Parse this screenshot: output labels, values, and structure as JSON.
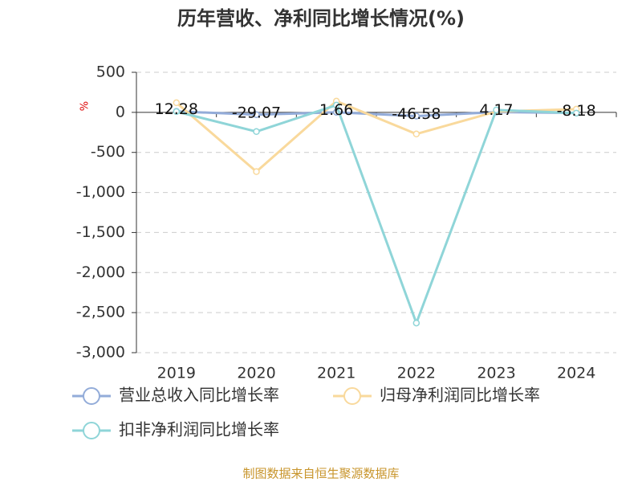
{
  "chart_data": {
    "type": "line",
    "title": "历年营收、净利同比增长情况(%)",
    "y_unit": "%",
    "categories": [
      "2019",
      "2020",
      "2021",
      "2022",
      "2023",
      "2024"
    ],
    "series": [
      {
        "name": "营业总收入同比增长率",
        "color": "#93acd9",
        "values": [
          12.28,
          -29.07,
          1.66,
          -46.58,
          4.17,
          -8.18
        ],
        "labels": true
      },
      {
        "name": "归母净利润同比增长率",
        "color": "#f9d99c",
        "values": [
          120,
          -740,
          140,
          -270,
          10,
          40
        ]
      },
      {
        "name": "扣非净利润同比增长率",
        "color": "#8fd5d8",
        "values": [
          10,
          -240,
          90,
          -2630,
          30,
          -10
        ]
      }
    ],
    "ylim": [
      -3000,
      500
    ],
    "yticks": [
      {
        "value": -3000,
        "label": "-3,000"
      },
      {
        "value": -2500,
        "label": "-2,500"
      },
      {
        "value": -2000,
        "label": "-2,000"
      },
      {
        "value": -1500,
        "label": "-1,500"
      },
      {
        "value": -1000,
        "label": "-1,000"
      },
      -500,
      0,
      500
    ],
    "grid": true,
    "source": "制图数据来自恒生聚源数据库"
  }
}
